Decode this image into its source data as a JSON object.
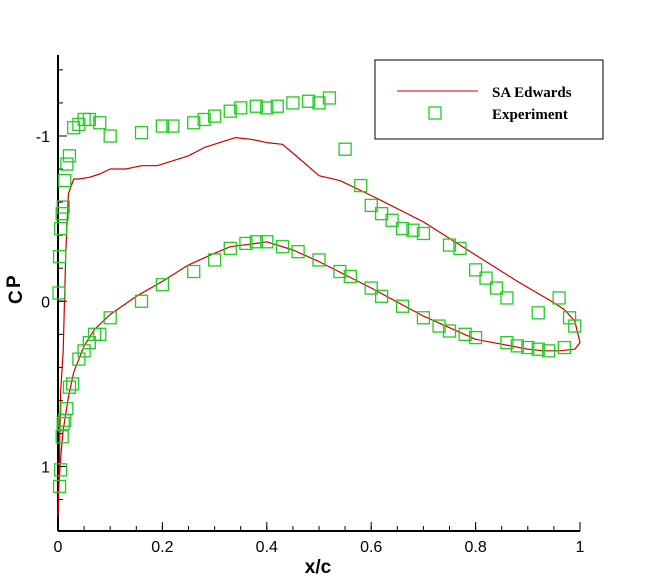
{
  "chart_data": {
    "type": "line",
    "title": "",
    "xlabel": "x/c",
    "ylabel": "C",
    "ylabel_subscript": "P",
    "xlim": [
      0,
      1
    ],
    "ylim": [
      1.39,
      -1.49
    ],
    "y_reversed": true,
    "grid": false,
    "legend_position": "top-right",
    "x_ticks": [
      0,
      0.2,
      0.4,
      0.6,
      0.8,
      1
    ],
    "x_tick_labels": [
      "0",
      "0.2",
      "0.4",
      "0.6",
      "0.8",
      "1"
    ],
    "y_ticks": [
      -1,
      0,
      1
    ],
    "y_tick_labels": [
      "-1",
      "0",
      "1"
    ],
    "series": [
      {
        "name": "SA Edwards",
        "kind": "line",
        "color": "#cc0000",
        "x": [
          0.0,
          0.003,
          0.005,
          0.01,
          0.015,
          0.02,
          0.03,
          0.04,
          0.06,
          0.08,
          0.1,
          0.13,
          0.16,
          0.19,
          0.22,
          0.25,
          0.28,
          0.31,
          0.34,
          0.37,
          0.4,
          0.43,
          0.46,
          0.5,
          0.54,
          0.6,
          0.7,
          0.8,
          0.88,
          0.94,
          0.97,
          0.99,
          1.0,
          0.99,
          0.96,
          0.93,
          0.9,
          0.85,
          0.8,
          0.7,
          0.6,
          0.5,
          0.45,
          0.4,
          0.38,
          0.33,
          0.3,
          0.25,
          0.2,
          0.15,
          0.1,
          0.07,
          0.05,
          0.03,
          0.02,
          0.01,
          0.005,
          0.002,
          0.0
        ],
        "y": [
          1.3,
          0.9,
          0.55,
          0.3,
          -0.3,
          -0.65,
          -0.74,
          -0.74,
          -0.75,
          -0.77,
          -0.8,
          -0.8,
          -0.82,
          -0.82,
          -0.85,
          -0.88,
          -0.93,
          -0.96,
          -0.99,
          -0.98,
          -0.96,
          -0.95,
          -0.87,
          -0.76,
          -0.73,
          -0.64,
          -0.48,
          -0.28,
          -0.12,
          -0.01,
          0.05,
          0.12,
          0.25,
          0.29,
          0.3,
          0.3,
          0.29,
          0.26,
          0.23,
          0.09,
          -0.08,
          -0.24,
          -0.31,
          -0.36,
          -0.35,
          -0.33,
          -0.29,
          -0.22,
          -0.12,
          -0.03,
          0.08,
          0.17,
          0.27,
          0.43,
          0.58,
          0.78,
          0.95,
          1.1,
          1.3
        ]
      },
      {
        "name": "Experiment",
        "kind": "marker",
        "color": "#22cc22",
        "x": [
          0.002,
          0.003,
          0.005,
          0.008,
          0.01,
          0.013,
          0.017,
          0.022,
          0.03,
          0.04,
          0.05,
          0.06,
          0.08,
          0.1,
          0.16,
          0.2,
          0.22,
          0.26,
          0.28,
          0.3,
          0.33,
          0.35,
          0.38,
          0.4,
          0.42,
          0.45,
          0.48,
          0.5,
          0.52,
          0.55,
          0.58,
          0.6,
          0.62,
          0.64,
          0.66,
          0.68,
          0.7,
          0.75,
          0.77,
          0.8,
          0.82,
          0.84,
          0.86,
          0.92,
          0.96,
          0.98,
          0.003,
          0.005,
          0.008,
          0.01,
          0.013,
          0.017,
          0.022,
          0.028,
          0.04,
          0.05,
          0.06,
          0.07,
          0.08,
          0.1,
          0.16,
          0.2,
          0.26,
          0.3,
          0.33,
          0.36,
          0.38,
          0.4,
          0.43,
          0.46,
          0.5,
          0.54,
          0.56,
          0.6,
          0.62,
          0.66,
          0.7,
          0.73,
          0.75,
          0.78,
          0.8,
          0.86,
          0.88,
          0.9,
          0.92,
          0.94,
          0.97,
          0.99
        ],
        "y": [
          -0.05,
          -0.27,
          -0.44,
          -0.53,
          -0.57,
          -0.73,
          -0.83,
          -0.88,
          -1.05,
          -1.07,
          -1.1,
          -1.1,
          -1.08,
          -1.0,
          -1.02,
          -1.06,
          -1.06,
          -1.08,
          -1.1,
          -1.12,
          -1.15,
          -1.17,
          -1.18,
          -1.17,
          -1.18,
          -1.2,
          -1.21,
          -1.2,
          -1.23,
          -0.92,
          -0.7,
          -0.58,
          -0.53,
          -0.49,
          -0.44,
          -0.43,
          -0.41,
          -0.34,
          -0.32,
          -0.19,
          -0.14,
          -0.08,
          -0.02,
          0.07,
          -0.02,
          0.1,
          1.12,
          1.02,
          0.82,
          0.74,
          0.72,
          0.65,
          0.52,
          0.5,
          0.35,
          0.3,
          0.25,
          0.2,
          0.2,
          0.1,
          0.0,
          -0.1,
          -0.18,
          -0.25,
          -0.32,
          -0.35,
          -0.36,
          -0.36,
          -0.33,
          -0.3,
          -0.25,
          -0.18,
          -0.15,
          -0.08,
          -0.03,
          0.03,
          0.1,
          0.15,
          0.18,
          0.2,
          0.22,
          0.25,
          0.27,
          0.28,
          0.29,
          0.3,
          0.28,
          0.15
        ]
      }
    ]
  }
}
